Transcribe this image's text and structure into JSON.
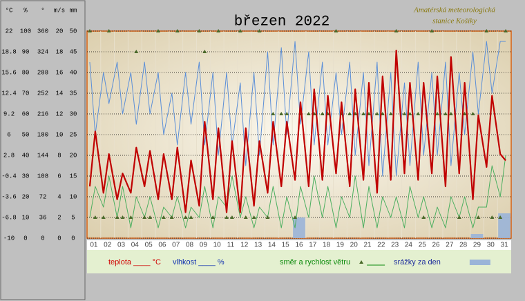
{
  "chart_data": {
    "type": "line",
    "title": "březen 2022",
    "annotation": [
      "Amatérská meteorologická",
      "stanice Košíky"
    ],
    "categories": [
      "01",
      "02",
      "03",
      "04",
      "05",
      "06",
      "07",
      "08",
      "09",
      "10",
      "11",
      "12",
      "13",
      "14",
      "15",
      "16",
      "17",
      "18",
      "19",
      "20",
      "21",
      "22",
      "23",
      "24",
      "25",
      "26",
      "27",
      "28",
      "29",
      "30",
      "31"
    ],
    "xlim": [
      0,
      31
    ],
    "y_axes": [
      {
        "label": "°C",
        "ylim": [
          -10,
          22
        ],
        "yticks": [
          -10,
          -6.8,
          -3.6,
          -0.4,
          2.8,
          6,
          9.2,
          12.4,
          15.6,
          18.8,
          22
        ]
      },
      {
        "label": "%",
        "ylim": [
          0,
          100
        ],
        "yticks": [
          0,
          10,
          20,
          30,
          40,
          50,
          60,
          70,
          80,
          90,
          100
        ]
      },
      {
        "label": "°",
        "ylim": [
          0,
          360
        ],
        "yticks": [
          0,
          36,
          72,
          108,
          144,
          180,
          216,
          252,
          288,
          324,
          360
        ]
      },
      {
        "label": "m/s",
        "ylim": [
          0,
          20
        ],
        "yticks": [
          0,
          2,
          4,
          6,
          8,
          10,
          12,
          14,
          16,
          18,
          20
        ]
      },
      {
        "label": "mm",
        "ylim": [
          0,
          50
        ],
        "yticks": [
          0,
          5,
          10,
          15,
          20,
          25,
          30,
          35,
          40,
          45,
          50
        ]
      }
    ],
    "grid": true,
    "x": [
      0.2,
      0.6,
      1.2,
      1.6,
      2.2,
      2.6,
      3.2,
      3.6,
      4.2,
      4.6,
      5.2,
      5.6,
      6.2,
      6.6,
      7.2,
      7.6,
      8.2,
      8.6,
      9.2,
      9.6,
      10.2,
      10.6,
      11.2,
      11.6,
      12.2,
      12.6,
      13.2,
      13.6,
      14.2,
      14.6,
      15.2,
      15.6,
      16.2,
      16.6,
      17.2,
      17.6,
      18.2,
      18.6,
      19.2,
      19.6,
      20.2,
      20.6,
      21.2,
      21.6,
      22.2,
      22.6,
      23.2,
      23.6,
      24.2,
      24.6,
      25.2,
      25.6,
      26.2,
      26.6,
      27.2,
      27.6,
      28.2,
      28.6,
      29.2,
      29.6,
      30.2,
      30.6
    ],
    "series": [
      {
        "name": "teplota ____ °C",
        "kind": "line",
        "axis": 0,
        "color": "#c00000",
        "legend_color": "#d00000",
        "values": [
          -2,
          6.5,
          -3,
          3,
          -4,
          0,
          -3,
          4,
          -2,
          3.5,
          -4,
          3,
          -4,
          4,
          -6,
          2,
          -5,
          8,
          -4,
          7,
          -6,
          5,
          -6,
          7,
          -5,
          5,
          -3,
          8,
          -2,
          8,
          -1,
          11,
          -2,
          13,
          -1,
          12,
          0,
          11,
          -2,
          13,
          -1,
          14,
          -3,
          15,
          -1,
          19,
          0,
          14,
          -1,
          14,
          0,
          15,
          -2,
          18,
          0,
          14,
          -4,
          9,
          1,
          12,
          3,
          2
        ]
      },
      {
        "name": "vlhkost ____ %",
        "kind": "line",
        "axis": 1,
        "color": "#5b8fd8",
        "legend_color": "#1030b0",
        "values": [
          85,
          50,
          80,
          65,
          85,
          60,
          80,
          55,
          85,
          60,
          80,
          50,
          70,
          45,
          80,
          55,
          85,
          45,
          80,
          40,
          80,
          45,
          75,
          35,
          80,
          40,
          90,
          45,
          92,
          50,
          95,
          55,
          90,
          45,
          85,
          45,
          80,
          50,
          85,
          40,
          80,
          35,
          85,
          30,
          80,
          30,
          75,
          35,
          85,
          40,
          80,
          40,
          85,
          35,
          80,
          50,
          90,
          60,
          95,
          70,
          95,
          95
        ]
      },
      {
        "name": "směr a rychlost větru",
        "kind": "line",
        "axis": 3,
        "color": "#4caf60",
        "legend_color": "#0a8a0a",
        "values": [
          2,
          5,
          3,
          6,
          2,
          5,
          1,
          4,
          2,
          4,
          1,
          3,
          2,
          4,
          1,
          3,
          2,
          5,
          1,
          4,
          3,
          6,
          2,
          4,
          1,
          3,
          2,
          5,
          1,
          4,
          1,
          5,
          2,
          6,
          2,
          5,
          1,
          4,
          2,
          6,
          1,
          5,
          1,
          4,
          2,
          4,
          1,
          5,
          2,
          4,
          1,
          3,
          1,
          4,
          2,
          4,
          1,
          3,
          3,
          7,
          4,
          8
        ]
      },
      {
        "kind": "points",
        "axis": 2,
        "color": "#4a6a2a",
        "values": [
          360,
          36,
          36,
          360,
          36,
          36,
          36,
          324,
          36,
          36,
          360,
          36,
          36,
          360,
          36,
          36,
          360,
          324,
          36,
          360,
          36,
          36,
          360,
          36,
          36,
          360,
          36,
          216,
          216,
          216,
          36,
          216,
          216,
          216,
          216,
          216,
          360,
          216,
          216,
          216,
          216,
          216,
          216,
          216,
          216,
          360,
          216,
          216,
          216,
          36,
          360,
          216,
          216,
          216,
          36,
          216,
          216,
          36,
          360,
          36,
          36,
          360
        ]
      },
      {
        "name": "srážky za den",
        "kind": "bar",
        "axis": 4,
        "color": "#9ab4d8",
        "legend_color": "#1c2c9c",
        "values": [
          0,
          0,
          0,
          0,
          0,
          0,
          0,
          0,
          0,
          0,
          0,
          0,
          0,
          0,
          0,
          5,
          0,
          0,
          0,
          0,
          0,
          0,
          0,
          0,
          0,
          0,
          0,
          0,
          1,
          0,
          6
        ]
      }
    ]
  }
}
